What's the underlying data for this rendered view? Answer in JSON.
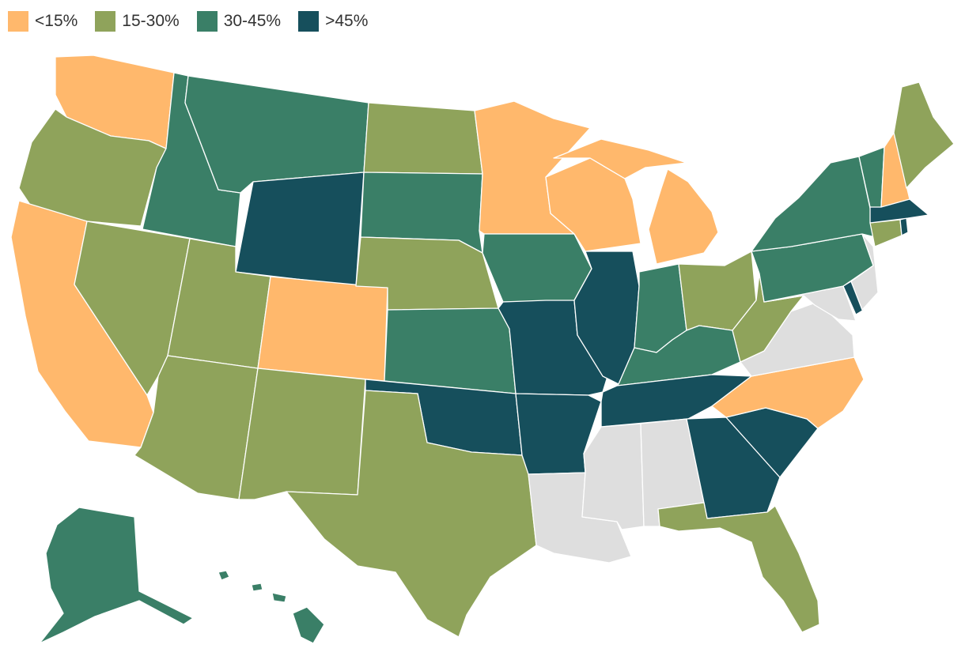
{
  "legend": [
    {
      "label": "<15%",
      "color": "#FFB86C"
    },
    {
      "label": "15-30%",
      "color": "#8FA35B"
    },
    {
      "label": "30-45%",
      "color": "#3A7F67"
    },
    {
      "label": ">45%",
      "color": "#164F5C"
    }
  ],
  "colors": {
    "no_data": "#DEDEDE",
    "border": "#FFFFFF"
  },
  "states": [
    {
      "abbr": "WA",
      "category": "<15%"
    },
    {
      "abbr": "OR",
      "category": "15-30%"
    },
    {
      "abbr": "CA",
      "category": "<15%"
    },
    {
      "abbr": "ID",
      "category": "30-45%"
    },
    {
      "abbr": "NV",
      "category": "15-30%"
    },
    {
      "abbr": "MT",
      "category": "30-45%"
    },
    {
      "abbr": "WY",
      "category": ">45%"
    },
    {
      "abbr": "UT",
      "category": "15-30%"
    },
    {
      "abbr": "AZ",
      "category": "15-30%"
    },
    {
      "abbr": "CO",
      "category": "<15%"
    },
    {
      "abbr": "NM",
      "category": "15-30%"
    },
    {
      "abbr": "ND",
      "category": "15-30%"
    },
    {
      "abbr": "SD",
      "category": "30-45%"
    },
    {
      "abbr": "NE",
      "category": "15-30%"
    },
    {
      "abbr": "KS",
      "category": "30-45%"
    },
    {
      "abbr": "OK",
      "category": ">45%"
    },
    {
      "abbr": "TX",
      "category": "15-30%"
    },
    {
      "abbr": "MN",
      "category": "<15%"
    },
    {
      "abbr": "IA",
      "category": "30-45%"
    },
    {
      "abbr": "MO",
      "category": ">45%"
    },
    {
      "abbr": "AR",
      "category": ">45%"
    },
    {
      "abbr": "LA",
      "category": "no data"
    },
    {
      "abbr": "WI",
      "category": "<15%"
    },
    {
      "abbr": "IL",
      "category": ">45%"
    },
    {
      "abbr": "MI",
      "category": "<15%"
    },
    {
      "abbr": "IN",
      "category": "30-45%"
    },
    {
      "abbr": "OH",
      "category": "15-30%"
    },
    {
      "abbr": "KY",
      "category": "30-45%"
    },
    {
      "abbr": "TN",
      "category": ">45%"
    },
    {
      "abbr": "MS",
      "category": "no data"
    },
    {
      "abbr": "AL",
      "category": "no data"
    },
    {
      "abbr": "GA",
      "category": ">45%"
    },
    {
      "abbr": "FL",
      "category": "15-30%"
    },
    {
      "abbr": "SC",
      "category": ">45%"
    },
    {
      "abbr": "NC",
      "category": "<15%"
    },
    {
      "abbr": "VA",
      "category": "no data"
    },
    {
      "abbr": "WV",
      "category": "15-30%"
    },
    {
      "abbr": "MD",
      "category": "no data"
    },
    {
      "abbr": "DE",
      "category": ">45%"
    },
    {
      "abbr": "PA",
      "category": "30-45%"
    },
    {
      "abbr": "NJ",
      "category": "no data"
    },
    {
      "abbr": "NY",
      "category": "30-45%"
    },
    {
      "abbr": "CT",
      "category": "15-30%"
    },
    {
      "abbr": "RI",
      "category": ">45%"
    },
    {
      "abbr": "MA",
      "category": ">45%"
    },
    {
      "abbr": "VT",
      "category": "30-45%"
    },
    {
      "abbr": "NH",
      "category": "<15%"
    },
    {
      "abbr": "ME",
      "category": "15-30%"
    },
    {
      "abbr": "AK",
      "category": "30-45%"
    },
    {
      "abbr": "HI",
      "category": "30-45%"
    }
  ]
}
